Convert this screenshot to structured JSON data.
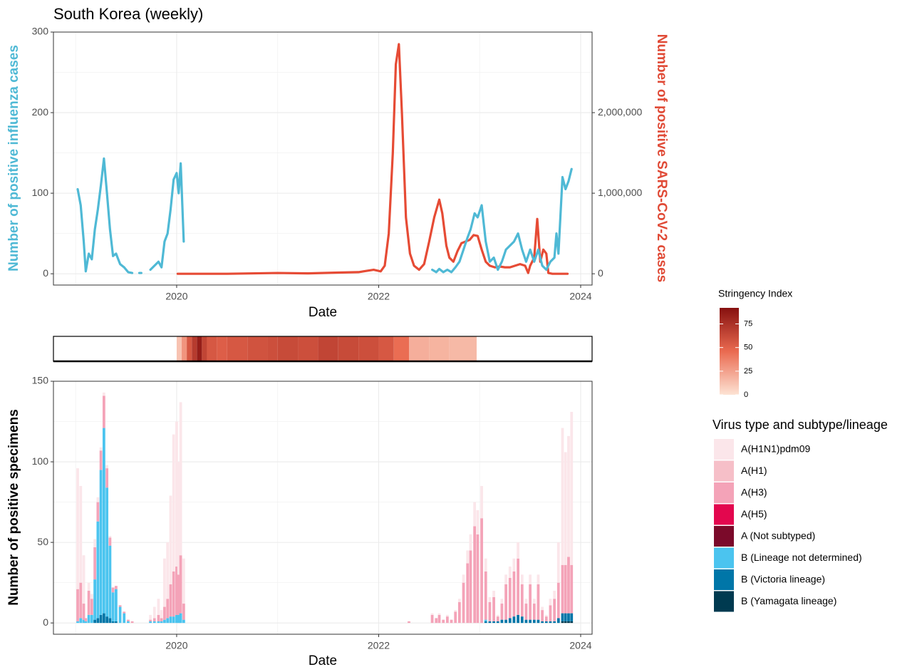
{
  "chart_data": [
    {
      "type": "line",
      "title": "South Korea (weekly)",
      "x_label": "Date",
      "y_label": "Number of positive influenza cases",
      "y2_label": "Number of positive SARS-CoV-2 cases",
      "xlim": [
        2018.78,
        2024.113
      ],
      "xticks": [
        2020,
        2022,
        2024
      ],
      "ylim": [
        -14,
        300
      ],
      "yticks": [
        0,
        100,
        200,
        300
      ],
      "y2lim": [
        -140000,
        3000000
      ],
      "y2ticks": [
        0,
        {
          "value": 1000000,
          "label": "1,000,000"
        },
        {
          "value": 2000000,
          "label": "2,000,000"
        }
      ],
      "grid": true,
      "series": [
        {
          "color": "#e64b35",
          "axis": "y2",
          "x": [
            2020.01,
            2020.5,
            2021.0,
            2021.3,
            2021.6,
            2021.8,
            2021.95,
            2022.02,
            2022.06,
            2022.1,
            2022.14,
            2022.17,
            2022.2,
            2022.23,
            2022.27,
            2022.31,
            2022.35,
            2022.4,
            2022.45,
            2022.5,
            2022.55,
            2022.6,
            2022.63,
            2022.67,
            2022.7,
            2022.74,
            2022.78,
            2022.82,
            2022.86,
            2022.9,
            2022.94,
            2022.98,
            2023.02,
            2023.06,
            2023.1,
            2023.15,
            2023.2,
            2023.25,
            2023.3,
            2023.35,
            2023.4,
            2023.45,
            2023.48,
            2023.5,
            2023.54,
            2023.57,
            2023.6,
            2023.63,
            2023.66,
            2023.68,
            2023.72,
            2023.8,
            2023.87
          ],
          "values": [
            0,
            0,
            10000,
            5000,
            15000,
            20000,
            50000,
            30000,
            100000,
            500000,
            1500000,
            2600000,
            2850000,
            2000000,
            700000,
            250000,
            100000,
            50000,
            120000,
            400000,
            700000,
            920000,
            750000,
            350000,
            200000,
            150000,
            280000,
            380000,
            400000,
            420000,
            480000,
            470000,
            300000,
            150000,
            100000,
            80000,
            90000,
            80000,
            80000,
            100000,
            120000,
            100000,
            10000,
            100000,
            200000,
            680000,
            150000,
            300000,
            250000,
            10000,
            0,
            0,
            0
          ]
        },
        {
          "color": "#4fb9d5",
          "x": [
            2019.02,
            2019.05,
            2019.08,
            2019.1,
            2019.13,
            2019.16,
            2019.19,
            2019.22,
            2019.25,
            2019.28,
            2019.31,
            2019.34,
            2019.37,
            2019.4,
            2019.44,
            2019.48,
            2019.52,
            2019.56,
            2019.6,
            2019.63,
            2019.65,
            2019.7,
            2019.74,
            2019.78,
            2019.82,
            2019.85,
            2019.88,
            2019.91,
            2019.94,
            2019.97,
            2020.0,
            2020.02,
            2020.04,
            2020.07,
            2021.0,
            2022.53,
            2022.57,
            2022.6,
            2022.64,
            2022.68,
            2022.72,
            2022.76,
            2022.8,
            2022.84,
            2022.88,
            2022.91,
            2022.95,
            2022.98,
            2023.02,
            2023.06,
            2023.1,
            2023.14,
            2023.18,
            2023.22,
            2023.26,
            2023.3,
            2023.34,
            2023.38,
            2023.42,
            2023.46,
            2023.5,
            2023.54,
            2023.58,
            2023.62,
            2023.66,
            2023.7,
            2023.74,
            2023.76,
            2023.78,
            2023.82,
            2023.85,
            2023.88,
            2023.91
          ],
          "values": [
            105,
            85,
            40,
            3,
            25,
            18,
            55,
            80,
            110,
            143,
            100,
            55,
            22,
            25,
            12,
            8,
            2,
            1,
            null,
            1,
            1,
            null,
            5,
            10,
            15,
            8,
            40,
            50,
            80,
            117,
            125,
            100,
            137,
            40,
            null,
            5,
            2,
            6,
            2,
            5,
            2,
            8,
            15,
            30,
            45,
            55,
            75,
            70,
            85,
            40,
            15,
            20,
            5,
            15,
            30,
            35,
            40,
            50,
            30,
            15,
            30,
            15,
            30,
            10,
            5,
            15,
            20,
            50,
            25,
            120,
            105,
            115,
            130
          ]
        }
      ]
    },
    {
      "type": "heatmap-strip",
      "legend_title": "Stringency Index",
      "xlim": [
        2018.78,
        2024.113
      ],
      "bins": [
        2020.0,
        2020.05,
        2020.1,
        2020.15,
        2020.2,
        2020.25,
        2020.3,
        2020.4,
        2020.5,
        2020.7,
        2020.9,
        2021.0,
        2021.2,
        2021.4,
        2021.6,
        2021.8,
        2022.0,
        2022.15,
        2022.3,
        2022.5,
        2022.7,
        2022.97
      ],
      "values": [
        12,
        30,
        55,
        70,
        85,
        65,
        55,
        52,
        55,
        58,
        60,
        62,
        60,
        65,
        62,
        60,
        55,
        45,
        20,
        18,
        16
      ],
      "clim": [
        0,
        92
      ],
      "cticks": [
        0,
        25,
        50,
        75
      ],
      "colors": [
        "#fde3d4",
        "#ea6a50",
        "#86100f"
      ]
    },
    {
      "type": "stacked-bar",
      "x_label": "Date",
      "y_label": "Number of positive specimens",
      "legend_title": "Virus type and subtype/lineage",
      "xlim": [
        2018.78,
        2024.113
      ],
      "xticks": [
        2020,
        2022,
        2024
      ],
      "ylim": [
        -7,
        150
      ],
      "yticks": [
        0,
        50,
        100,
        150
      ],
      "grid": true,
      "x": [
        2019.02,
        2019.05,
        2019.08,
        2019.1,
        2019.13,
        2019.16,
        2019.19,
        2019.22,
        2019.25,
        2019.28,
        2019.31,
        2019.34,
        2019.37,
        2019.4,
        2019.44,
        2019.48,
        2019.52,
        2019.56,
        2019.74,
        2019.78,
        2019.82,
        2019.85,
        2019.88,
        2019.91,
        2019.94,
        2019.97,
        2020.0,
        2020.02,
        2020.04,
        2020.07,
        2022.3,
        2022.53,
        2022.57,
        2022.6,
        2022.64,
        2022.68,
        2022.72,
        2022.76,
        2022.8,
        2022.84,
        2022.88,
        2022.91,
        2022.95,
        2022.98,
        2023.02,
        2023.06,
        2023.1,
        2023.14,
        2023.18,
        2023.22,
        2023.26,
        2023.3,
        2023.34,
        2023.38,
        2023.42,
        2023.46,
        2023.5,
        2023.54,
        2023.58,
        2023.62,
        2023.66,
        2023.7,
        2023.74,
        2023.78,
        2023.82,
        2023.85,
        2023.88,
        2023.91
      ],
      "series": [
        {
          "name": "A(H1N1)pdm09",
          "color": "#fbe6ea",
          "values": [
            75,
            60,
            30,
            0,
            5,
            3,
            5,
            3,
            2,
            2,
            2,
            1,
            0,
            0,
            0,
            0,
            0,
            0,
            3,
            7,
            10,
            5,
            30,
            35,
            55,
            85,
            90,
            70,
            95,
            28,
            0,
            1,
            0,
            1,
            0,
            1,
            0,
            1,
            2,
            5,
            8,
            10,
            15,
            15,
            20,
            8,
            3,
            4,
            1,
            3,
            6,
            7,
            8,
            10,
            6,
            3,
            6,
            3,
            6,
            2,
            1,
            4,
            5,
            25,
            85,
            70,
            75,
            95
          ]
        },
        {
          "name": "A(H1)",
          "color": "#f6bfc8",
          "values": [
            0,
            0,
            0,
            0,
            0,
            0,
            0,
            0,
            0,
            0,
            0,
            0,
            0,
            0,
            0,
            0,
            0,
            0,
            0,
            0,
            0,
            0,
            0,
            0,
            0,
            0,
            0,
            0,
            0,
            0,
            0,
            0,
            0,
            0,
            0,
            0,
            0,
            0,
            0,
            0,
            0,
            0,
            0,
            0,
            0,
            0,
            0,
            0,
            0,
            0,
            0,
            0,
            0,
            0,
            0,
            0,
            0,
            0,
            0,
            0,
            0,
            0,
            0,
            0,
            0,
            0,
            0,
            0
          ]
        },
        {
          "name": "A(H3)",
          "color": "#f4a3b8",
          "values": [
            20,
            22,
            10,
            2,
            15,
            10,
            20,
            12,
            12,
            20,
            12,
            5,
            3,
            2,
            1,
            1,
            1,
            1,
            1,
            2,
            4,
            2,
            8,
            12,
            20,
            28,
            30,
            25,
            36,
            10,
            1,
            5,
            3,
            5,
            2,
            4,
            2,
            7,
            13,
            25,
            37,
            45,
            60,
            55,
            65,
            30,
            12,
            15,
            3,
            10,
            22,
            25,
            28,
            35,
            20,
            10,
            22,
            10,
            22,
            7,
            3,
            10,
            14,
            22,
            30,
            30,
            35,
            30
          ]
        },
        {
          "name": "A(H5)",
          "color": "#e3074e",
          "values": [
            0,
            0,
            0,
            0,
            0,
            0,
            0,
            0,
            0,
            0,
            0,
            0,
            0,
            0,
            0,
            0,
            0,
            0,
            0,
            0,
            0,
            0,
            0,
            0,
            0,
            0,
            0,
            0,
            0,
            0,
            0,
            0,
            0,
            0,
            0,
            0,
            0,
            0,
            0,
            0,
            0,
            0,
            0,
            0,
            0,
            0,
            0,
            0,
            0,
            0,
            0,
            0,
            0,
            0,
            0,
            0,
            0,
            0,
            0,
            0,
            0,
            0,
            0,
            0,
            0,
            0,
            0,
            0
          ]
        },
        {
          "name": "A (Not subtyped)",
          "color": "#7b0a2a",
          "values": [
            0,
            0,
            0,
            0,
            0,
            0,
            0,
            0,
            0,
            0,
            0,
            0,
            0,
            0,
            0,
            0,
            0,
            0,
            0,
            0,
            0,
            0,
            0,
            0,
            0,
            0,
            0,
            0,
            0,
            0,
            0,
            0,
            0,
            0,
            0,
            0,
            0,
            0,
            0,
            0,
            0,
            0,
            0,
            0,
            0,
            0,
            0,
            0,
            0,
            0,
            0,
            0,
            0,
            0,
            0,
            0,
            0,
            0,
            0,
            0,
            0,
            0,
            0,
            0,
            0,
            0,
            0,
            0
          ]
        },
        {
          "name": "B (Lineage not determined)",
          "color": "#4bc4ef",
          "values": [
            1,
            3,
            2,
            1,
            5,
            5,
            25,
            60,
            90,
            115,
            80,
            45,
            18,
            20,
            10,
            6,
            1,
            0,
            1,
            1,
            1,
            1,
            2,
            3,
            4,
            4,
            5,
            5,
            6,
            2,
            0,
            0,
            0,
            0,
            0,
            0,
            0,
            0,
            0,
            0,
            0,
            0,
            0,
            0,
            0,
            1,
            0,
            0,
            0,
            0,
            0,
            0,
            0,
            0,
            0,
            0,
            0,
            0,
            0,
            0,
            0,
            0,
            0,
            0,
            0,
            0,
            0,
            0
          ]
        },
        {
          "name": "B (Victoria lineage)",
          "color": "#0076a8",
          "values": [
            0,
            0,
            0,
            0,
            0,
            0,
            2,
            3,
            5,
            6,
            4,
            3,
            1,
            1,
            0,
            0,
            0,
            0,
            0,
            0,
            0,
            0,
            0,
            0,
            0,
            0,
            0,
            0,
            0,
            0,
            0,
            0,
            0,
            0,
            0,
            0,
            0,
            0,
            0,
            0,
            0,
            0,
            0,
            0,
            0,
            1,
            1,
            1,
            1,
            2,
            2,
            3,
            4,
            5,
            4,
            2,
            2,
            2,
            2,
            1,
            1,
            1,
            1,
            3,
            5,
            5,
            5,
            5
          ]
        },
        {
          "name": "B (Yamagata lineage)",
          "color": "#003a50",
          "values": [
            0,
            0,
            0,
            0,
            0,
            0,
            0,
            0,
            0,
            0,
            0,
            0,
            0,
            0,
            0,
            0,
            0,
            0,
            0,
            0,
            0,
            0,
            0,
            0,
            0,
            0,
            0,
            0,
            0,
            0,
            0,
            0,
            0,
            0,
            0,
            0,
            0,
            0,
            0,
            0,
            0,
            0,
            0,
            0,
            0,
            0,
            0,
            0,
            0,
            0,
            0,
            0,
            0,
            0,
            0,
            0,
            0,
            0,
            0,
            0,
            0,
            0,
            0,
            0,
            1,
            1,
            1,
            1
          ]
        }
      ]
    }
  ]
}
